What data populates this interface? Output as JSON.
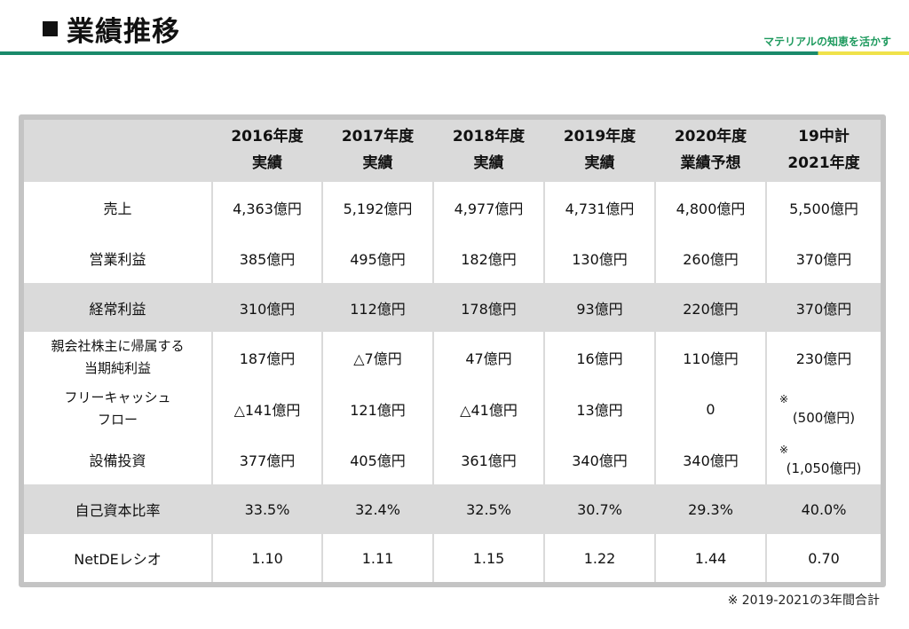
{
  "header": {
    "title": "業績推移",
    "tagline": "マテリアルの知恵を活かす"
  },
  "table": {
    "columns": [
      {
        "line1": "2016年度",
        "line2": "実績"
      },
      {
        "line1": "2017年度",
        "line2": "実績"
      },
      {
        "line1": "2018年度",
        "line2": "実績"
      },
      {
        "line1": "2019年度",
        "line2": "実績"
      },
      {
        "line1": "2020年度",
        "line2": "業績予想"
      },
      {
        "line1": "19中計",
        "line2": "2021年度"
      }
    ],
    "rows": [
      {
        "label": "売上",
        "values": [
          "4,363億円",
          "5,192億円",
          "4,977億円",
          "4,731億円",
          "4,800億円",
          "5,500億円"
        ]
      },
      {
        "label": "営業利益",
        "values": [
          "385億円",
          "495億円",
          "182億円",
          "130億円",
          "260億円",
          "370億円"
        ]
      },
      {
        "label": "経常利益",
        "values": [
          "310億円",
          "112億円",
          "178億円",
          "93億円",
          "220億円",
          "370億円"
        ]
      },
      {
        "label_line1": "親会社株主に帰属する",
        "label_line2": "当期純利益",
        "values": [
          "187億円",
          "△7億円",
          "47億円",
          "16億円",
          "110億円",
          "230億円"
        ]
      },
      {
        "label_line1": "フリーキャッシュ",
        "label_line2": "フロー",
        "values": [
          "△141億円",
          "121億円",
          "△41億円",
          "13億円",
          "0"
        ],
        "note_mark": "※",
        "note_value": "(500億円)"
      },
      {
        "label": "設備投資",
        "values": [
          "377億円",
          "405億円",
          "361億円",
          "340億円",
          "340億円"
        ],
        "note_mark": "※",
        "note_value": "(1,050億円)"
      },
      {
        "label": "自己資本比率",
        "values": [
          "33.5%",
          "32.4%",
          "32.5%",
          "30.7%",
          "29.3%",
          "40.0%"
        ]
      },
      {
        "label": "NetDEレシオ",
        "values": [
          "1.10",
          "1.11",
          "1.15",
          "1.22",
          "1.44",
          "0.70"
        ]
      }
    ]
  },
  "footnote": "※ 2019-2021の3年間合計"
}
